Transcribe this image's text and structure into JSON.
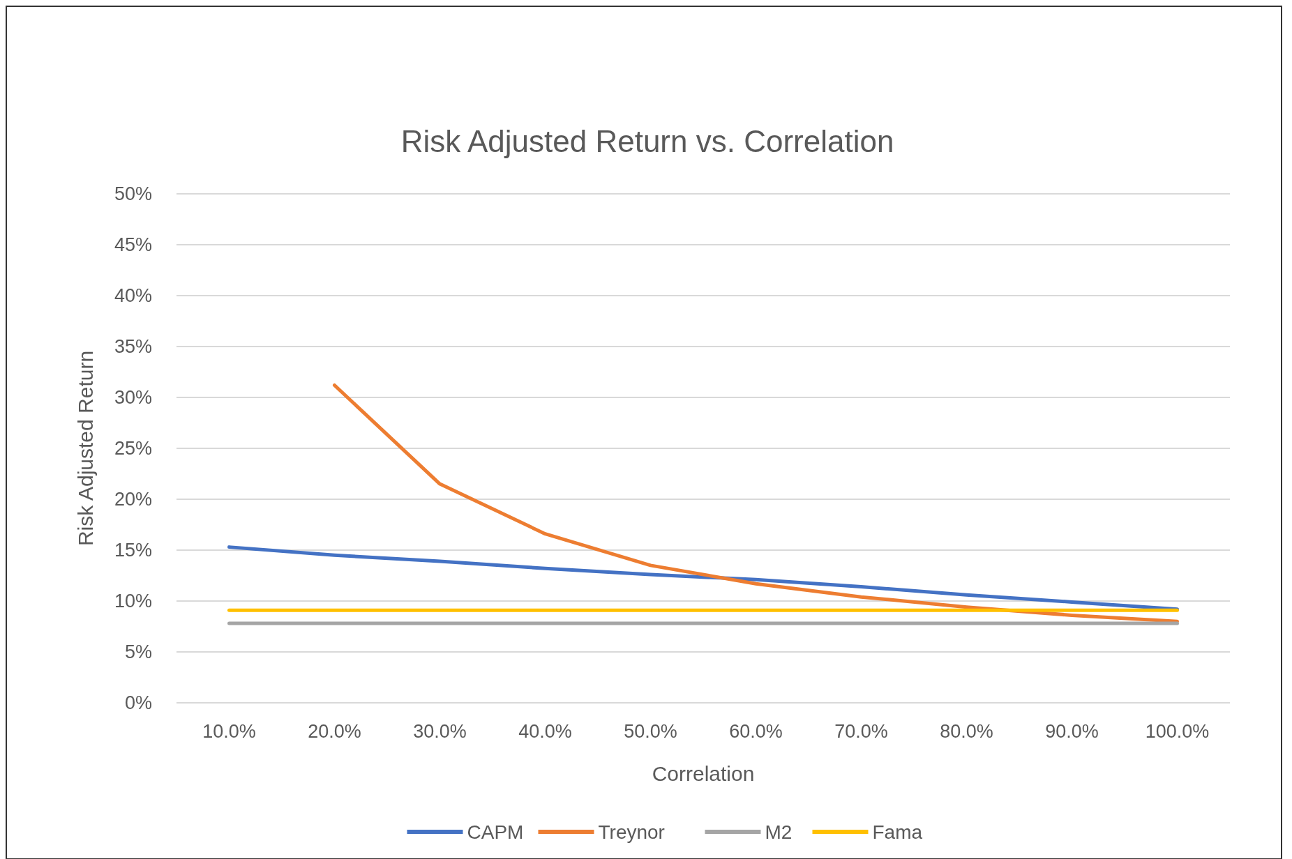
{
  "chart_data": {
    "type": "line",
    "title": "Risk Adjusted Return vs. Correlation",
    "xlabel": "Correlation",
    "ylabel": "Risk Adjusted Return",
    "categories": [
      "10.0%",
      "20.0%",
      "30.0%",
      "40.0%",
      "50.0%",
      "60.0%",
      "70.0%",
      "80.0%",
      "90.0%",
      "100.0%"
    ],
    "series": [
      {
        "name": "CAPM",
        "color": "#4472c4",
        "values": [
          15.3,
          14.5,
          13.9,
          13.2,
          12.6,
          12.1,
          11.4,
          10.6,
          9.9,
          9.2
        ]
      },
      {
        "name": "Treynor",
        "color": "#ed7d31",
        "values": [
          null,
          31.2,
          21.5,
          16.6,
          13.5,
          11.7,
          10.4,
          9.4,
          8.6,
          8.0
        ]
      },
      {
        "name": "M2",
        "color": "#a5a5a5",
        "values": [
          7.8,
          7.8,
          7.8,
          7.8,
          7.8,
          7.8,
          7.8,
          7.8,
          7.8,
          7.8
        ]
      },
      {
        "name": "Fama",
        "color": "#ffc000",
        "values": [
          9.1,
          9.1,
          9.1,
          9.1,
          9.1,
          9.1,
          9.1,
          9.1,
          9.1,
          9.1
        ]
      }
    ],
    "ylim": [
      0,
      50
    ],
    "yticks": [
      {
        "value": 0,
        "label": "0%"
      },
      {
        "value": 5,
        "label": "5%"
      },
      {
        "value": 10,
        "label": "10%"
      },
      {
        "value": 15,
        "label": "15%"
      },
      {
        "value": 20,
        "label": "20%"
      },
      {
        "value": 25,
        "label": "25%"
      },
      {
        "value": 30,
        "label": "30%"
      },
      {
        "value": 35,
        "label": "35%"
      },
      {
        "value": 40,
        "label": "40%"
      },
      {
        "value": 45,
        "label": "45%"
      },
      {
        "value": 50,
        "label": "50%"
      }
    ],
    "grid": "y",
    "legend": "bottom",
    "marker": "none",
    "line_style": "solid"
  }
}
